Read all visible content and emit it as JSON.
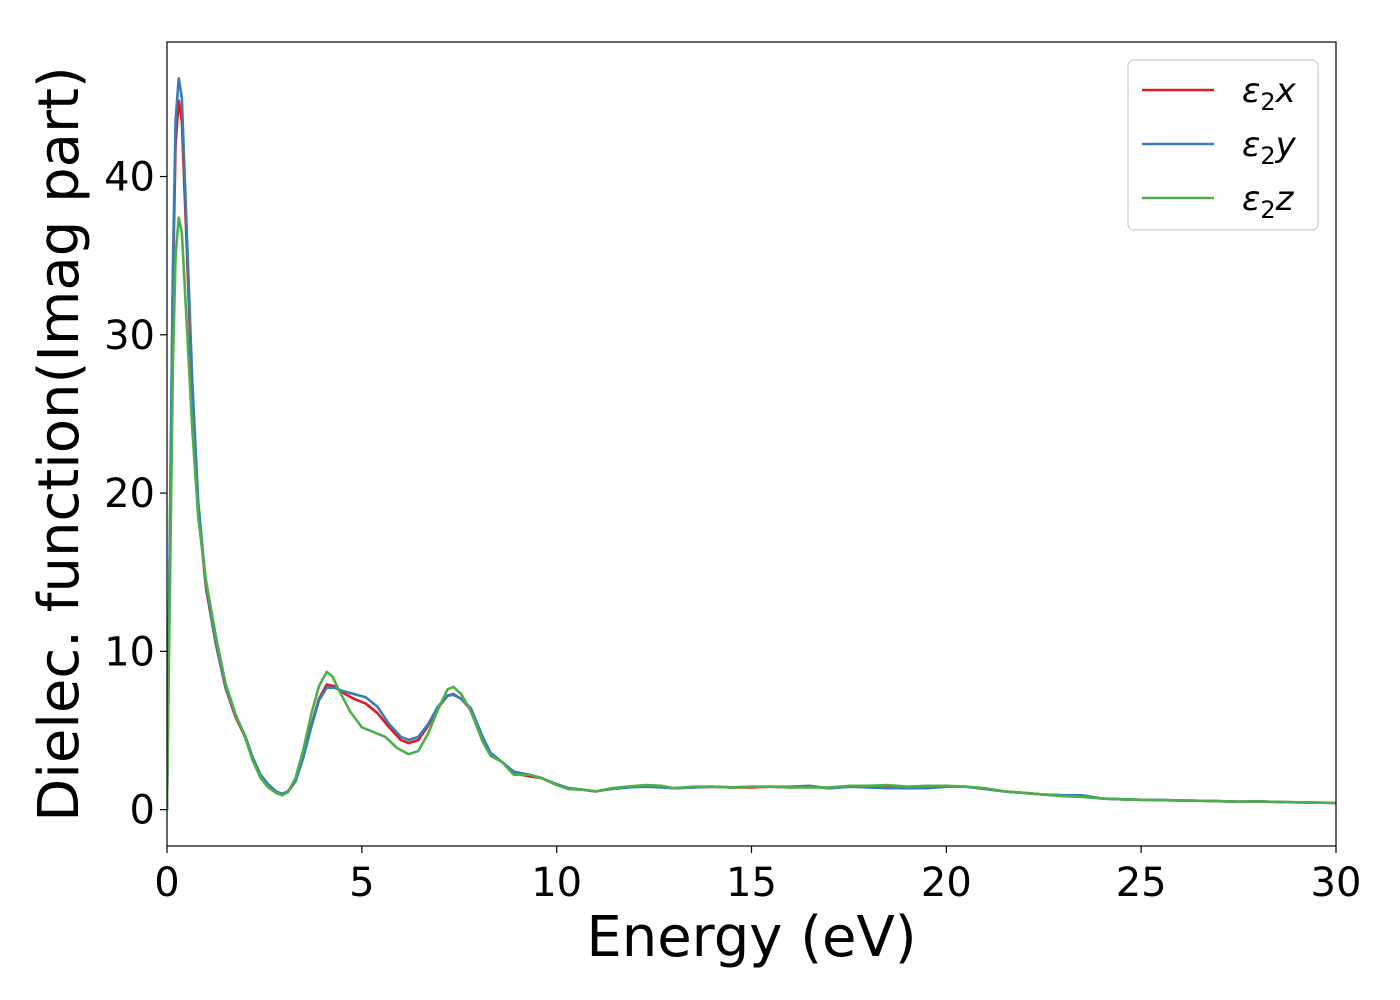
{
  "chart_data": {
    "type": "line",
    "xlabel": "Energy (eV)",
    "ylabel": "Dielec. function(Imag part)",
    "xlim": [
      0,
      30
    ],
    "ylim": [
      -2.3,
      48.5
    ],
    "x_ticks": [
      0,
      5,
      10,
      15,
      20,
      25,
      30
    ],
    "y_ticks": [
      0,
      10,
      20,
      30,
      40
    ],
    "grid": false,
    "legend_position": "top-right",
    "series": [
      {
        "name": "ε₂x",
        "legend_main": "ε",
        "legend_sub": "2",
        "legend_var": "x",
        "color": "#e41a1c",
        "points": [
          [
            0,
            0
          ],
          [
            0.08,
            18
          ],
          [
            0.15,
            33
          ],
          [
            0.22,
            42
          ],
          [
            0.3,
            44.8
          ],
          [
            0.38,
            43.5
          ],
          [
            0.5,
            36
          ],
          [
            0.65,
            26
          ],
          [
            0.8,
            19
          ],
          [
            1.0,
            14
          ],
          [
            1.25,
            10.5
          ],
          [
            1.5,
            7.7
          ],
          [
            1.75,
            5.9
          ],
          [
            2.0,
            4.6
          ],
          [
            2.2,
            3.2
          ],
          [
            2.4,
            2.1
          ],
          [
            2.6,
            1.5
          ],
          [
            2.8,
            1.1
          ],
          [
            2.95,
            0.95
          ],
          [
            3.1,
            1.1
          ],
          [
            3.3,
            1.8
          ],
          [
            3.5,
            3.4
          ],
          [
            3.7,
            5.3
          ],
          [
            3.9,
            7.0
          ],
          [
            4.1,
            7.9
          ],
          [
            4.3,
            7.8
          ],
          [
            4.5,
            7.4
          ],
          [
            4.8,
            7.0
          ],
          [
            5.1,
            6.7
          ],
          [
            5.4,
            6.1
          ],
          [
            5.7,
            5.2
          ],
          [
            6.0,
            4.4
          ],
          [
            6.2,
            4.2
          ],
          [
            6.45,
            4.4
          ],
          [
            6.7,
            5.3
          ],
          [
            6.95,
            6.4
          ],
          [
            7.2,
            7.2
          ],
          [
            7.35,
            7.3
          ],
          [
            7.55,
            7.0
          ],
          [
            7.8,
            6.3
          ],
          [
            8.1,
            4.5
          ],
          [
            8.3,
            3.5
          ],
          [
            8.6,
            3.0
          ],
          [
            8.9,
            2.3
          ],
          [
            9.3,
            2.1
          ],
          [
            9.6,
            2.0
          ],
          [
            10.0,
            1.6
          ],
          [
            10.3,
            1.35
          ],
          [
            10.7,
            1.25
          ],
          [
            11.0,
            1.15
          ],
          [
            11.4,
            1.3
          ],
          [
            11.8,
            1.4
          ],
          [
            12.3,
            1.5
          ],
          [
            12.7,
            1.45
          ],
          [
            13.0,
            1.35
          ],
          [
            13.5,
            1.4
          ],
          [
            14.0,
            1.45
          ],
          [
            14.5,
            1.4
          ],
          [
            15.0,
            1.4
          ],
          [
            15.5,
            1.45
          ],
          [
            16.0,
            1.4
          ],
          [
            16.5,
            1.45
          ],
          [
            17.0,
            1.35
          ],
          [
            17.5,
            1.45
          ],
          [
            18.0,
            1.45
          ],
          [
            18.5,
            1.4
          ],
          [
            19.0,
            1.4
          ],
          [
            19.5,
            1.4
          ],
          [
            20.0,
            1.45
          ],
          [
            20.5,
            1.45
          ],
          [
            21.0,
            1.3
          ],
          [
            21.5,
            1.15
          ],
          [
            22.0,
            1.05
          ],
          [
            22.5,
            0.95
          ],
          [
            23.0,
            0.9
          ],
          [
            23.5,
            0.85
          ],
          [
            24.0,
            0.7
          ],
          [
            24.5,
            0.65
          ],
          [
            25.0,
            0.62
          ],
          [
            25.5,
            0.6
          ],
          [
            26.0,
            0.58
          ],
          [
            26.5,
            0.56
          ],
          [
            27.0,
            0.53
          ],
          [
            27.5,
            0.5
          ],
          [
            28.0,
            0.52
          ],
          [
            28.5,
            0.48
          ],
          [
            29.0,
            0.46
          ],
          [
            29.5,
            0.44
          ],
          [
            30.0,
            0.42
          ]
        ]
      },
      {
        "name": "ε₂y",
        "legend_main": "ε",
        "legend_sub": "2",
        "legend_var": "y",
        "color": "#377eb8",
        "points": [
          [
            0,
            0
          ],
          [
            0.08,
            19
          ],
          [
            0.15,
            34
          ],
          [
            0.22,
            43.5
          ],
          [
            0.3,
            46.2
          ],
          [
            0.38,
            45
          ],
          [
            0.5,
            37
          ],
          [
            0.65,
            27
          ],
          [
            0.8,
            19.5
          ],
          [
            1.0,
            14.2
          ],
          [
            1.25,
            10.6
          ],
          [
            1.5,
            7.8
          ],
          [
            1.75,
            6.0
          ],
          [
            2.0,
            4.7
          ],
          [
            2.2,
            3.3
          ],
          [
            2.4,
            2.2
          ],
          [
            2.6,
            1.6
          ],
          [
            2.8,
            1.15
          ],
          [
            2.95,
            1.0
          ],
          [
            3.1,
            1.15
          ],
          [
            3.3,
            1.8
          ],
          [
            3.5,
            3.3
          ],
          [
            3.7,
            5.2
          ],
          [
            3.9,
            6.9
          ],
          [
            4.1,
            7.7
          ],
          [
            4.3,
            7.7
          ],
          [
            4.5,
            7.5
          ],
          [
            4.8,
            7.3
          ],
          [
            5.1,
            7.1
          ],
          [
            5.4,
            6.5
          ],
          [
            5.7,
            5.4
          ],
          [
            6.0,
            4.6
          ],
          [
            6.2,
            4.4
          ],
          [
            6.45,
            4.6
          ],
          [
            6.7,
            5.4
          ],
          [
            6.95,
            6.5
          ],
          [
            7.2,
            7.2
          ],
          [
            7.35,
            7.25
          ],
          [
            7.55,
            7.0
          ],
          [
            7.8,
            6.4
          ],
          [
            8.1,
            4.6
          ],
          [
            8.3,
            3.6
          ],
          [
            8.6,
            3.0
          ],
          [
            8.9,
            2.4
          ],
          [
            9.3,
            2.2
          ],
          [
            9.6,
            2.0
          ],
          [
            10.0,
            1.6
          ],
          [
            10.3,
            1.35
          ],
          [
            10.7,
            1.25
          ],
          [
            11.0,
            1.15
          ],
          [
            11.4,
            1.3
          ],
          [
            11.8,
            1.4
          ],
          [
            12.3,
            1.45
          ],
          [
            12.7,
            1.4
          ],
          [
            13.0,
            1.35
          ],
          [
            13.5,
            1.4
          ],
          [
            14.0,
            1.45
          ],
          [
            14.5,
            1.4
          ],
          [
            15.0,
            1.45
          ],
          [
            15.5,
            1.45
          ],
          [
            16.0,
            1.45
          ],
          [
            16.5,
            1.5
          ],
          [
            17.0,
            1.35
          ],
          [
            17.5,
            1.45
          ],
          [
            18.0,
            1.4
          ],
          [
            18.5,
            1.35
          ],
          [
            19.0,
            1.35
          ],
          [
            19.5,
            1.35
          ],
          [
            20.0,
            1.45
          ],
          [
            20.5,
            1.45
          ],
          [
            21.0,
            1.3
          ],
          [
            21.5,
            1.15
          ],
          [
            22.0,
            1.05
          ],
          [
            22.5,
            0.95
          ],
          [
            23.0,
            0.9
          ],
          [
            23.5,
            0.9
          ],
          [
            24.0,
            0.7
          ],
          [
            24.5,
            0.65
          ],
          [
            25.0,
            0.62
          ],
          [
            25.5,
            0.6
          ],
          [
            26.0,
            0.58
          ],
          [
            26.5,
            0.56
          ],
          [
            27.0,
            0.53
          ],
          [
            27.5,
            0.5
          ],
          [
            28.0,
            0.52
          ],
          [
            28.5,
            0.48
          ],
          [
            29.0,
            0.46
          ],
          [
            29.5,
            0.44
          ],
          [
            30.0,
            0.42
          ]
        ]
      },
      {
        "name": "ε₂z",
        "legend_main": "ε",
        "legend_sub": "2",
        "legend_var": "z",
        "color": "#4daf4a",
        "points": [
          [
            0,
            0
          ],
          [
            0.08,
            15
          ],
          [
            0.15,
            28
          ],
          [
            0.22,
            35
          ],
          [
            0.3,
            37.4
          ],
          [
            0.38,
            36.5
          ],
          [
            0.5,
            31
          ],
          [
            0.65,
            24
          ],
          [
            0.8,
            18.5
          ],
          [
            1.0,
            14.5
          ],
          [
            1.25,
            11.0
          ],
          [
            1.5,
            8.0
          ],
          [
            1.75,
            6.1
          ],
          [
            2.0,
            4.6
          ],
          [
            2.2,
            3.1
          ],
          [
            2.4,
            2.0
          ],
          [
            2.6,
            1.4
          ],
          [
            2.8,
            1.05
          ],
          [
            2.95,
            0.9
          ],
          [
            3.1,
            1.1
          ],
          [
            3.3,
            2.0
          ],
          [
            3.5,
            3.8
          ],
          [
            3.7,
            6.0
          ],
          [
            3.9,
            7.8
          ],
          [
            4.1,
            8.7
          ],
          [
            4.25,
            8.4
          ],
          [
            4.4,
            7.6
          ],
          [
            4.7,
            6.2
          ],
          [
            5.0,
            5.2
          ],
          [
            5.3,
            4.9
          ],
          [
            5.6,
            4.6
          ],
          [
            5.9,
            3.9
          ],
          [
            6.2,
            3.5
          ],
          [
            6.45,
            3.7
          ],
          [
            6.7,
            4.8
          ],
          [
            6.95,
            6.3
          ],
          [
            7.2,
            7.6
          ],
          [
            7.35,
            7.75
          ],
          [
            7.55,
            7.3
          ],
          [
            7.8,
            6.2
          ],
          [
            8.1,
            4.3
          ],
          [
            8.3,
            3.4
          ],
          [
            8.6,
            3.0
          ],
          [
            8.9,
            2.2
          ],
          [
            9.3,
            2.2
          ],
          [
            9.6,
            2.0
          ],
          [
            10.0,
            1.55
          ],
          [
            10.3,
            1.3
          ],
          [
            10.7,
            1.25
          ],
          [
            11.0,
            1.15
          ],
          [
            11.4,
            1.35
          ],
          [
            11.8,
            1.45
          ],
          [
            12.3,
            1.55
          ],
          [
            12.7,
            1.5
          ],
          [
            13.0,
            1.35
          ],
          [
            13.5,
            1.45
          ],
          [
            14.0,
            1.45
          ],
          [
            14.5,
            1.4
          ],
          [
            15.0,
            1.45
          ],
          [
            15.5,
            1.45
          ],
          [
            16.0,
            1.4
          ],
          [
            16.5,
            1.4
          ],
          [
            17.0,
            1.4
          ],
          [
            17.5,
            1.5
          ],
          [
            18.0,
            1.5
          ],
          [
            18.5,
            1.55
          ],
          [
            19.0,
            1.45
          ],
          [
            19.5,
            1.5
          ],
          [
            20.0,
            1.5
          ],
          [
            20.5,
            1.45
          ],
          [
            21.0,
            1.35
          ],
          [
            21.5,
            1.15
          ],
          [
            22.0,
            1.05
          ],
          [
            22.5,
            0.95
          ],
          [
            23.0,
            0.85
          ],
          [
            23.5,
            0.8
          ],
          [
            24.0,
            0.7
          ],
          [
            24.5,
            0.65
          ],
          [
            25.0,
            0.62
          ],
          [
            25.5,
            0.6
          ],
          [
            26.0,
            0.58
          ],
          [
            26.5,
            0.56
          ],
          [
            27.0,
            0.53
          ],
          [
            27.5,
            0.5
          ],
          [
            28.0,
            0.52
          ],
          [
            28.5,
            0.48
          ],
          [
            29.0,
            0.46
          ],
          [
            29.5,
            0.44
          ],
          [
            30.0,
            0.42
          ]
        ]
      }
    ]
  }
}
